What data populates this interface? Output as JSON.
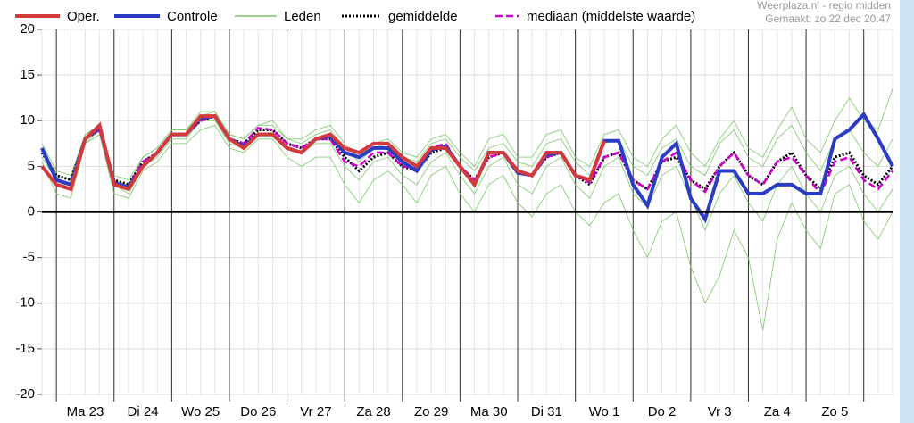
{
  "chart_data": {
    "type": "line",
    "credit": "Weerplaza.nl - regio midden",
    "created": "Gemaakt: zo 22 dec 20:47",
    "day_labels": [
      "Ma 23",
      "Di 24",
      "Wo 25",
      "Do 26",
      "Vr 27",
      "Za 28",
      "Zo 29",
      "Ma 30",
      "Di 31",
      "Wo 1",
      "Do 2",
      "Vr 3",
      "Za 4",
      "Zo 5"
    ],
    "ylim": [
      -20,
      20
    ],
    "yticks": [
      -20,
      -15,
      -10,
      -5,
      0,
      5,
      10,
      15,
      20
    ],
    "grid": true,
    "series": [
      {
        "name": "Oper.",
        "color": "#d4393c",
        "values": [
          5,
          3,
          2.5,
          8,
          9.5,
          3,
          2.5,
          5,
          6.5,
          8.5,
          8.5,
          10.5,
          10.5,
          8,
          7,
          8.5,
          8.5,
          7,
          6.5,
          8,
          8.5,
          7,
          6.5,
          7.5,
          7.5,
          6,
          5,
          7,
          7,
          5,
          3,
          6.5,
          6.5,
          4.5,
          4,
          6.5,
          6.5,
          4,
          3.5,
          7.8,
          null,
          null,
          null,
          null,
          null,
          null,
          null,
          null,
          null,
          null,
          null,
          null,
          null,
          null,
          null,
          null,
          null,
          null,
          null,
          null
        ]
      },
      {
        "name": "Controle",
        "color": "#2b3cc4",
        "values": [
          7,
          3.5,
          3,
          8,
          9.3,
          3.2,
          2.7,
          5,
          6.5,
          8.5,
          8.5,
          10.3,
          10.5,
          8,
          7.2,
          8.5,
          8.5,
          7,
          6.5,
          8,
          8.3,
          6.5,
          6,
          7,
          7,
          5.5,
          4.5,
          6.8,
          7.2,
          5,
          3,
          6.5,
          6.5,
          4.3,
          4,
          6.3,
          6.5,
          4,
          3.5,
          7.8,
          7.8,
          3,
          0.7,
          6,
          7.5,
          1.5,
          -0.8,
          4.5,
          4.5,
          2,
          2,
          3,
          3,
          2,
          2,
          8,
          9,
          10.7,
          8,
          5
        ]
      },
      {
        "name": "Leden",
        "color": "#7cc46a",
        "members": [
          [
            7.5,
            4.5,
            4,
            8.5,
            9.5,
            4,
            3.5,
            6,
            7,
            9,
            9,
            11,
            11,
            8.5,
            8,
            9.5,
            10,
            8,
            8,
            9,
            9.5,
            7.5,
            6,
            7.5,
            8,
            6.5,
            6,
            8,
            8.5,
            6.5,
            5,
            8,
            8.5,
            6,
            6,
            8.5,
            9,
            6,
            5,
            8.5,
            9,
            6,
            5,
            8,
            9.5,
            6.5,
            5,
            8,
            10,
            7,
            6,
            9,
            11.5,
            8,
            6.5,
            10,
            12.5,
            10,
            9,
            13.5
          ],
          [
            5.5,
            2,
            1.5,
            7.5,
            8.5,
            2,
            1.5,
            4.5,
            5.5,
            7.5,
            7.5,
            9,
            9.5,
            7,
            6.5,
            8,
            8,
            6,
            5,
            6,
            6,
            3,
            1,
            3.5,
            4.5,
            3,
            1,
            4,
            5,
            2,
            0,
            3,
            4,
            1,
            -0.5,
            2,
            3,
            0,
            -1.5,
            1,
            2,
            -2,
            -5,
            -1,
            0,
            -6,
            -10,
            -7,
            -2,
            -5,
            -13,
            -3,
            1,
            -2,
            -4,
            2,
            3,
            -1,
            -3,
            0
          ],
          [
            6,
            3.5,
            2.5,
            7.5,
            9,
            3,
            2,
            5,
            6,
            8,
            8,
            10,
            10,
            7.5,
            7,
            8.5,
            8.5,
            7,
            6.5,
            7.5,
            7.5,
            5,
            3.5,
            5.5,
            6,
            4,
            3,
            5.5,
            6.5,
            4,
            2,
            5,
            6,
            3,
            2,
            5,
            6,
            3,
            1.5,
            5,
            6,
            2,
            0.5,
            4,
            5,
            1.5,
            -2,
            2,
            4,
            1,
            -1,
            3,
            5,
            2,
            0,
            4,
            5,
            2,
            0,
            2.5
          ],
          [
            7,
            4,
            3.5,
            8.5,
            9.5,
            3.5,
            3,
            6,
            7,
            9,
            9,
            10.5,
            11,
            8.5,
            8,
            9.5,
            9.5,
            8,
            7.5,
            8.5,
            9,
            7,
            5.5,
            7,
            7.5,
            6,
            5.5,
            7.5,
            8,
            6,
            4.5,
            7,
            7.5,
            5.5,
            5,
            7.5,
            8,
            5.5,
            4,
            7.5,
            8,
            5,
            4,
            7,
            8,
            5,
            4,
            7.5,
            9,
            6,
            5,
            8,
            9.5,
            6.5,
            4.5,
            8,
            9,
            6.5,
            5,
            8
          ]
        ]
      },
      {
        "name": "gemiddelde",
        "color": "#000000",
        "values": [
          6.5,
          4,
          3.5,
          8,
          9,
          3.5,
          3,
          5.5,
          6.5,
          8.5,
          8.5,
          10,
          10.5,
          8,
          7.5,
          9,
          9,
          7.5,
          7,
          8,
          8,
          6,
          4.5,
          6,
          6.5,
          5,
          4.5,
          6.5,
          7,
          5,
          3.5,
          6,
          6.5,
          4.5,
          4,
          6,
          6.5,
          4,
          3,
          6,
          6.5,
          3.5,
          2.5,
          5.5,
          6,
          3.5,
          2.5,
          5,
          6.5,
          4,
          3,
          5.5,
          6.5,
          4,
          2.5,
          6,
          6.5,
          4,
          3,
          5
        ]
      },
      {
        "name": "mediaan (middelste waarde)",
        "color": "#cc00cc",
        "values": [
          7,
          3.5,
          3,
          8,
          9,
          3,
          2.8,
          5.5,
          6.5,
          8.5,
          8.5,
          10,
          10.5,
          8,
          7.5,
          9.2,
          9,
          7.5,
          7,
          8,
          8,
          5.5,
          5,
          6.5,
          6.5,
          5,
          4.8,
          7,
          7.5,
          5,
          3.5,
          6,
          6.5,
          4.5,
          4,
          6,
          6.5,
          4,
          3.2,
          6,
          6.5,
          3.5,
          2.5,
          5.5,
          6.5,
          3.5,
          2.2,
          5,
          6.5,
          4,
          3,
          5.5,
          6,
          4,
          2,
          5.5,
          6,
          3.5,
          2.5,
          4.5
        ]
      }
    ]
  }
}
